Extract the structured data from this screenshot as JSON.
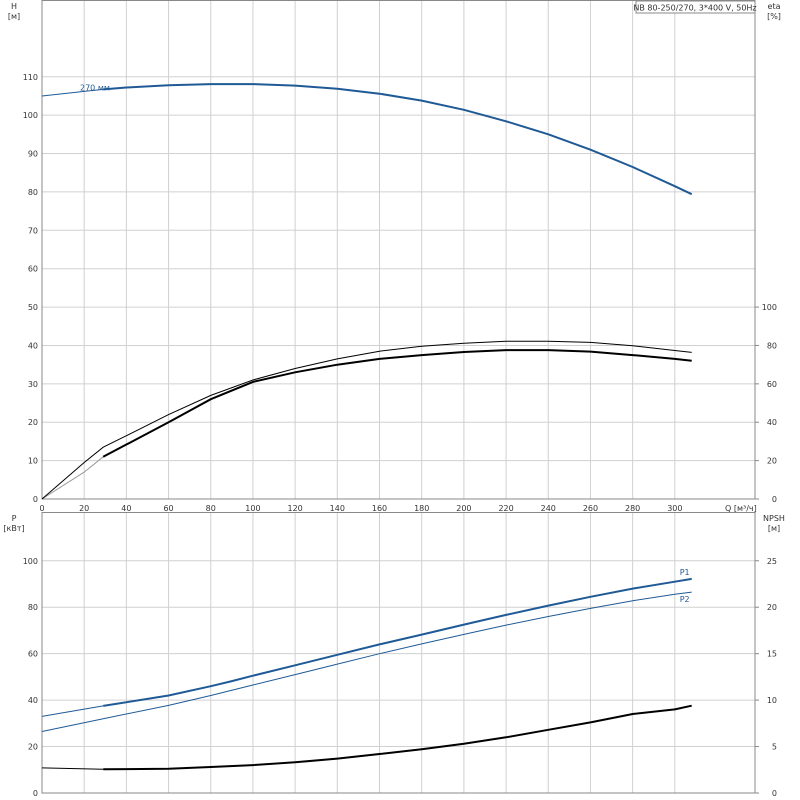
{
  "chart_data": [
    {
      "type": "line",
      "title": "NB 80-250/270, 3*400 V, 50Hz",
      "xlabel": "Q [м³/ч]",
      "ylabel": "H\n[м]",
      "y2label": "eta\n[%]",
      "xlim": [
        0,
        338
      ],
      "xticks": [
        0,
        20,
        40,
        60,
        80,
        100,
        120,
        140,
        160,
        180,
        200,
        220,
        240,
        260,
        280,
        300
      ],
      "ylim": [
        0,
        130
      ],
      "yticks": [
        0,
        10,
        20,
        30,
        40,
        50,
        60,
        70,
        80,
        90,
        100,
        110
      ],
      "y2lim": [
        0,
        260
      ],
      "y2ticks": [
        0,
        20,
        40,
        60,
        80,
        100
      ],
      "grid": true,
      "series": [
        {
          "label": "270 мм",
          "color": "#1f5a96",
          "line_width": 1,
          "x": [
            0,
            20,
            29
          ],
          "values": [
            105,
            106.2,
            106.7
          ]
        },
        {
          "color": "#1f5a96",
          "line_width": 2,
          "x": [
            29,
            40,
            60,
            80,
            100,
            120,
            140,
            160,
            180,
            200,
            220,
            240,
            260,
            280,
            300,
            308
          ],
          "values": [
            106.7,
            107.2,
            107.8,
            108.1,
            108.1,
            107.7,
            106.9,
            105.6,
            103.8,
            101.4,
            98.4,
            95,
            91,
            86.5,
            81.5,
            79.4
          ]
        },
        {
          "color": "#999999",
          "line_width": 1,
          "axis": "y2",
          "x": [
            0,
            20,
            29
          ],
          "values": [
            0,
            14,
            22
          ]
        },
        {
          "color": "#000000",
          "line_width": 2,
          "axis": "y2",
          "x": [
            29,
            60,
            80,
            100,
            120,
            140,
            160,
            180,
            200,
            220,
            240,
            260,
            280,
            300,
            308
          ],
          "values": [
            22,
            40,
            52,
            61,
            66,
            70,
            73,
            75,
            76.6,
            77.6,
            77.6,
            76.8,
            75,
            73,
            72
          ]
        },
        {
          "color": "#000000",
          "line_width": 1,
          "axis": "y2",
          "x": [
            0,
            20,
            29,
            40,
            60,
            80,
            100,
            120,
            140,
            160,
            180,
            200,
            220,
            240,
            260,
            280,
            300,
            308
          ],
          "values": [
            0,
            19,
            27,
            33,
            44,
            54,
            62,
            68,
            73,
            77,
            79.6,
            81.2,
            82.2,
            82.2,
            81.6,
            79.8,
            77.4,
            76.4
          ]
        }
      ]
    },
    {
      "type": "line",
      "ylabel": "P\n[кВт]",
      "y2label": "NPSH\n[м]",
      "xlim": [
        0,
        338
      ],
      "ylim": [
        0,
        121
      ],
      "yticks": [
        0,
        20,
        40,
        60,
        80,
        100
      ],
      "y2lim": [
        0,
        30.25
      ],
      "y2ticks": [
        0,
        5,
        10,
        15,
        20,
        25
      ],
      "grid": true,
      "series": [
        {
          "color": "#1f5a96",
          "line_width": 1,
          "x": [
            0,
            29
          ],
          "values": [
            33,
            37.5
          ]
        },
        {
          "label": "P1",
          "color": "#1f5a96",
          "line_width": 2,
          "x": [
            29,
            60,
            80,
            90,
            100,
            120,
            140,
            160,
            180,
            200,
            220,
            240,
            260,
            280,
            300,
            308
          ],
          "values": [
            37.5,
            42,
            46,
            48.2,
            50.5,
            55,
            59.5,
            64,
            68.2,
            72.5,
            76.7,
            80.7,
            84.5,
            88,
            91,
            92.2
          ]
        },
        {
          "label": "P2",
          "color": "#1f5a96",
          "line_width": 1,
          "x": [
            0,
            29,
            60,
            80,
            100,
            120,
            140,
            160,
            180,
            200,
            220,
            240,
            260,
            280,
            300,
            308
          ],
          "values": [
            26.5,
            32,
            37.7,
            42,
            46.5,
            51,
            55.5,
            60,
            64.2,
            68.3,
            72.3,
            76,
            79.5,
            82.8,
            85.6,
            86.5
          ]
        },
        {
          "color": "#000000",
          "line_width": 1,
          "axis": "y2",
          "x": [
            0,
            29
          ],
          "values": [
            2.7,
            2.55
          ]
        },
        {
          "color": "#000000",
          "line_width": 2,
          "axis": "y2",
          "x": [
            29,
            60,
            80,
            100,
            120,
            140,
            160,
            180,
            200,
            220,
            240,
            260,
            280,
            300,
            308
          ],
          "values": [
            2.55,
            2.6,
            2.8,
            3.0,
            3.3,
            3.7,
            4.2,
            4.7,
            5.3,
            6.0,
            6.8,
            7.6,
            8.5,
            9.0,
            9.4
          ]
        }
      ]
    }
  ]
}
